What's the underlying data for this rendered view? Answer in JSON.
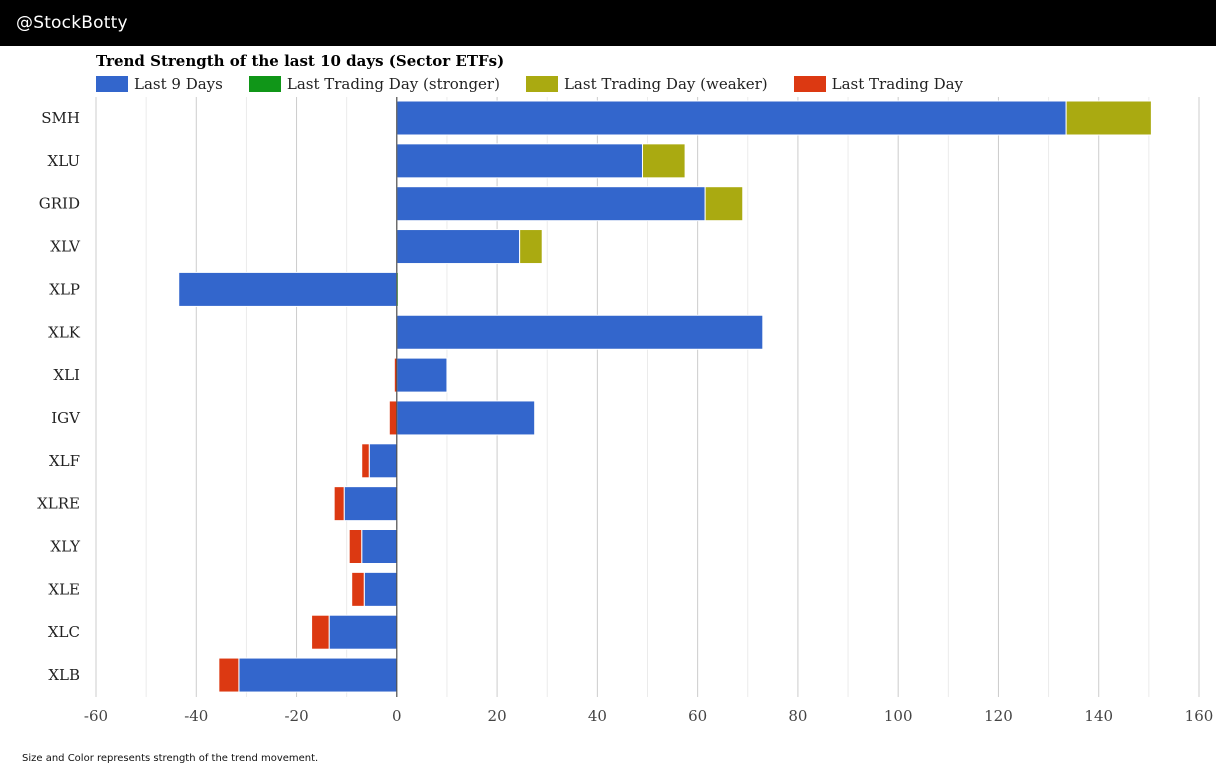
{
  "header": {
    "brand": "@StockBotty"
  },
  "colors": {
    "last9": "#3366cc",
    "stronger": "#109618",
    "weaker": "#aaaa11",
    "lastDay": "#dc3912",
    "background": "#ffffff",
    "header_bg": "#000000"
  },
  "legend": [
    {
      "key": "last9",
      "label": "Last 9 Days"
    },
    {
      "key": "stronger",
      "label": "Last Trading Day (stronger)"
    },
    {
      "key": "weaker",
      "label": "Last Trading Day (weaker)"
    },
    {
      "key": "lastDay",
      "label": "Last Trading Day"
    }
  ],
  "chart_data": {
    "type": "bar",
    "orientation": "horizontal",
    "stacked": true,
    "title": "Trend Strength of the last 10 days (Sector ETFs)",
    "xlabel": "",
    "ylabel": "",
    "xlim": [
      -60,
      160
    ],
    "xticks": [
      -60,
      -40,
      -20,
      0,
      20,
      40,
      60,
      80,
      100,
      120,
      140,
      160
    ],
    "grid": true,
    "legend_position": "top-left",
    "categories": [
      "SMH",
      "XLU",
      "GRID",
      "XLV",
      "XLP",
      "XLK",
      "XLI",
      "IGV",
      "XLF",
      "XLRE",
      "XLY",
      "XLE",
      "XLC",
      "XLB"
    ],
    "series": [
      {
        "name": "Last 9 Days",
        "key": "last9",
        "values": [
          133.5,
          49,
          61.5,
          24.5,
          -43.5,
          73,
          10,
          27.5,
          -5.5,
          -10.5,
          -7,
          -6.5,
          -13.5,
          -31.5
        ]
      },
      {
        "name": "Last Trading Day (stronger)",
        "key": "stronger",
        "values": [
          0,
          0,
          0,
          0,
          0.3,
          0,
          0,
          0,
          0,
          0,
          0,
          0,
          0,
          0
        ]
      },
      {
        "name": "Last Trading Day (weaker)",
        "key": "weaker",
        "values": [
          17,
          8.5,
          7.5,
          4.5,
          0,
          0,
          0,
          0,
          0,
          0,
          0,
          0,
          0,
          0
        ]
      },
      {
        "name": "Last Trading Day",
        "key": "lastDay",
        "values": [
          0,
          0,
          0,
          0,
          0,
          0,
          -0.5,
          -1.5,
          -1.5,
          -2,
          -2.5,
          -2.5,
          -3.5,
          -4
        ]
      }
    ]
  },
  "footnote": "Size and Color represents strength of the trend movement."
}
